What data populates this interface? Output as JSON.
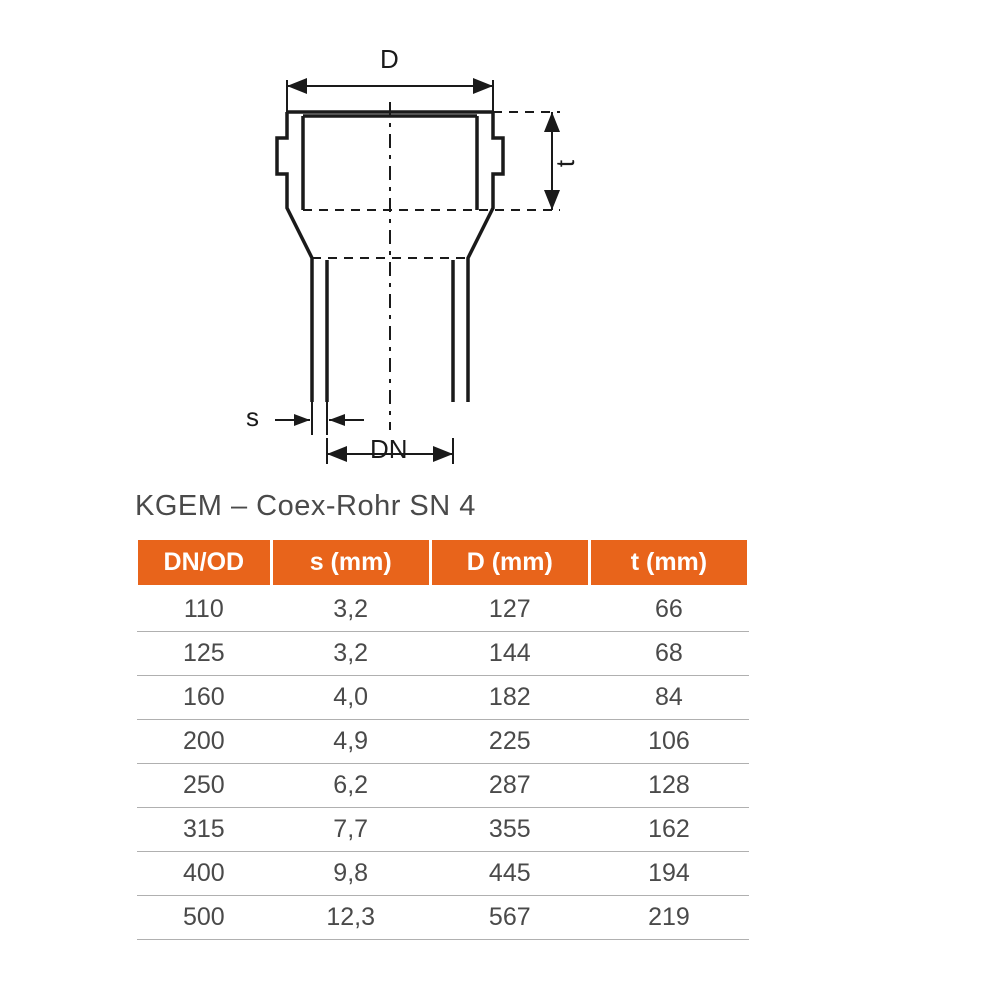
{
  "diagram": {
    "labels": {
      "D": "D",
      "t": "t",
      "s": "s",
      "DN": "DN"
    },
    "stroke_color": "#1a1a1a",
    "stroke_width_main": 3,
    "stroke_width_dim": 2,
    "dash_pattern": "8 6 3 6"
  },
  "table": {
    "title": "KGEM – Coex-Rohr SN 4",
    "header_bg": "#e8641b",
    "header_fg": "#ffffff",
    "cell_fg": "#4a4a4a",
    "row_border": "#b0b0b0",
    "columns": [
      "DN/OD",
      "s (mm)",
      "D (mm)",
      "t (mm)"
    ],
    "rows": [
      [
        "110",
        "3,2",
        "127",
        "66"
      ],
      [
        "125",
        "3,2",
        "144",
        "68"
      ],
      [
        "160",
        "4,0",
        "182",
        "84"
      ],
      [
        "200",
        "4,9",
        "225",
        "106"
      ],
      [
        "250",
        "6,2",
        "287",
        "128"
      ],
      [
        "315",
        "7,7",
        "355",
        "162"
      ],
      [
        "400",
        "9,8",
        "445",
        "194"
      ],
      [
        "500",
        "12,3",
        "567",
        "219"
      ]
    ]
  }
}
